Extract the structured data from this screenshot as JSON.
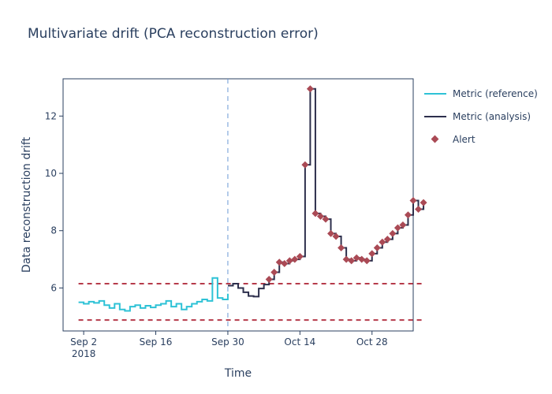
{
  "chart_data": {
    "type": "line",
    "title": "Multivariate drift (PCA reconstruction error)",
    "xlabel": "Time",
    "ylabel": "Data reconstruction drift",
    "x_ticks": [
      {
        "date": "2018-09-02",
        "label": "Sep 2",
        "sublabel": "2018"
      },
      {
        "date": "2018-09-16",
        "label": "Sep 16",
        "sublabel": ""
      },
      {
        "date": "2018-09-30",
        "label": "Sep 30",
        "sublabel": ""
      },
      {
        "date": "2018-10-14",
        "label": "Oct 14",
        "sublabel": ""
      },
      {
        "date": "2018-10-28",
        "label": "Oct 28",
        "sublabel": ""
      }
    ],
    "y_ticks": [
      6,
      8,
      10,
      12
    ],
    "xlim": [
      "2018-08-29",
      "2018-11-05"
    ],
    "ylim": [
      4.5,
      13.3
    ],
    "grid": false,
    "legend_position": "right",
    "thresholds": {
      "upper": 6.15,
      "lower": 4.88,
      "color": "#b63a4a"
    },
    "chunk_boundary": "2018-09-30",
    "series": [
      {
        "name": "Metric (reference)",
        "color": "#2ec2d6",
        "points": [
          [
            "2018-09-01",
            5.5
          ],
          [
            "2018-09-02",
            5.45
          ],
          [
            "2018-09-03",
            5.52
          ],
          [
            "2018-09-04",
            5.48
          ],
          [
            "2018-09-05",
            5.55
          ],
          [
            "2018-09-06",
            5.4
          ],
          [
            "2018-09-07",
            5.3
          ],
          [
            "2018-09-08",
            5.45
          ],
          [
            "2018-09-09",
            5.25
          ],
          [
            "2018-09-10",
            5.2
          ],
          [
            "2018-09-11",
            5.35
          ],
          [
            "2018-09-12",
            5.4
          ],
          [
            "2018-09-13",
            5.3
          ],
          [
            "2018-09-14",
            5.38
          ],
          [
            "2018-09-15",
            5.32
          ],
          [
            "2018-09-16",
            5.4
          ],
          [
            "2018-09-17",
            5.45
          ],
          [
            "2018-09-18",
            5.55
          ],
          [
            "2018-09-19",
            5.35
          ],
          [
            "2018-09-20",
            5.45
          ],
          [
            "2018-09-21",
            5.25
          ],
          [
            "2018-09-22",
            5.35
          ],
          [
            "2018-09-23",
            5.45
          ],
          [
            "2018-09-24",
            5.52
          ],
          [
            "2018-09-25",
            5.6
          ],
          [
            "2018-09-26",
            5.55
          ],
          [
            "2018-09-27",
            6.35
          ],
          [
            "2018-09-28",
            5.65
          ],
          [
            "2018-09-29",
            5.6
          ],
          [
            "2018-09-30",
            5.8
          ]
        ]
      },
      {
        "name": "Metric (analysis)",
        "color": "#2d2f4c",
        "points": [
          [
            "2018-09-30",
            6.08
          ],
          [
            "2018-10-01",
            6.15
          ],
          [
            "2018-10-02",
            6.0
          ],
          [
            "2018-10-03",
            5.85
          ],
          [
            "2018-10-04",
            5.72
          ],
          [
            "2018-10-05",
            5.7
          ],
          [
            "2018-10-06",
            5.98
          ],
          [
            "2018-10-07",
            6.12
          ],
          [
            "2018-10-08",
            6.3
          ],
          [
            "2018-10-09",
            6.55
          ],
          [
            "2018-10-10",
            6.9
          ],
          [
            "2018-10-11",
            6.85
          ],
          [
            "2018-10-12",
            6.95
          ],
          [
            "2018-10-13",
            7.0
          ],
          [
            "2018-10-14",
            7.1
          ],
          [
            "2018-10-15",
            10.3
          ],
          [
            "2018-10-16",
            12.95
          ],
          [
            "2018-10-17",
            8.6
          ],
          [
            "2018-10-18",
            8.5
          ],
          [
            "2018-10-19",
            8.4
          ],
          [
            "2018-10-20",
            7.9
          ],
          [
            "2018-10-21",
            7.8
          ],
          [
            "2018-10-22",
            7.4
          ],
          [
            "2018-10-23",
            7.0
          ],
          [
            "2018-10-24",
            6.95
          ],
          [
            "2018-10-25",
            7.05
          ],
          [
            "2018-10-26",
            7.0
          ],
          [
            "2018-10-27",
            6.95
          ],
          [
            "2018-10-28",
            7.2
          ],
          [
            "2018-10-29",
            7.4
          ],
          [
            "2018-10-30",
            7.6
          ],
          [
            "2018-10-31",
            7.7
          ],
          [
            "2018-11-01",
            7.9
          ],
          [
            "2018-11-02",
            8.1
          ],
          [
            "2018-11-03",
            8.2
          ],
          [
            "2018-11-04",
            8.55
          ],
          [
            "2018-11-05",
            9.05
          ],
          [
            "2018-11-06",
            8.75
          ],
          [
            "2018-11-07",
            8.98
          ]
        ]
      }
    ],
    "alert_series": {
      "name": "Alert",
      "color": "#aa4a55"
    }
  }
}
